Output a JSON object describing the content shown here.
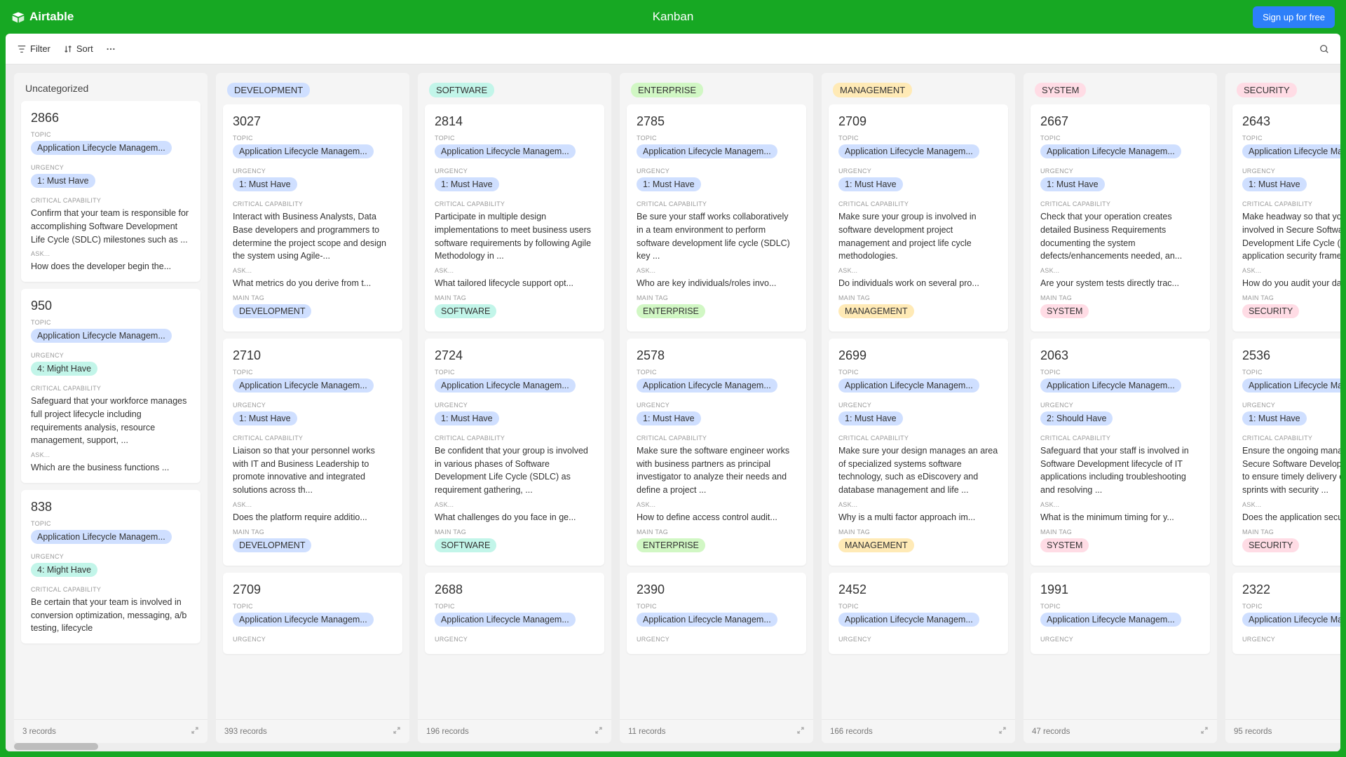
{
  "brand": "Airtable",
  "page_title": "Kanban",
  "signup_label": "Sign up for free",
  "toolbar": {
    "filter": "Filter",
    "sort": "Sort"
  },
  "colors": {
    "topic_pill": "#cfdfff",
    "urgency_must": "#cfdfff",
    "urgency_might": "#c2f5e9",
    "tag_development": "#cfdfff",
    "tag_software": "#c2f5e9",
    "tag_enterprise": "#d1f7c4",
    "tag_management": "#ffeab6",
    "tag_system": "#ffdce5",
    "tag_security": "#ffdce5"
  },
  "columns": [
    {
      "id": "uncategorized",
      "header_plain": "Uncategorized",
      "footer": "3 records",
      "cards": [
        {
          "id": "2866",
          "topic": "Application Lifecycle Managem...",
          "urgency": "1: Must Have",
          "urgency_color": "urgency_must",
          "capability": "Confirm that your team is responsible for accomplishing Software Development Life Cycle (SDLC) milestones such as ...",
          "ask": "How does the developer begin the..."
        },
        {
          "id": "950",
          "topic": "Application Lifecycle Managem...",
          "urgency": "4: Might Have",
          "urgency_color": "urgency_might",
          "capability": "Safeguard that your workforce manages full project lifecycle including requirements analysis, resource management, support, ...",
          "ask": "Which are the business functions ..."
        },
        {
          "id": "838",
          "topic": "Application Lifecycle Managem...",
          "urgency": "4: Might Have",
          "urgency_color": "urgency_might",
          "capability": "Be certain that your team is involved in conversion optimization, messaging, a/b testing, lifecycle"
        }
      ]
    },
    {
      "id": "development",
      "header_tag": "DEVELOPMENT",
      "header_color": "tag_development",
      "footer": "393 records",
      "cards": [
        {
          "id": "3027",
          "topic": "Application Lifecycle Managem...",
          "urgency": "1: Must Have",
          "urgency_color": "urgency_must",
          "capability": "Interact with Business Analysts, Data Base developers and programmers to determine the project scope and design the system using Agile-...",
          "ask": "What metrics do you derive from t...",
          "main_tag": "DEVELOPMENT",
          "main_tag_color": "tag_development"
        },
        {
          "id": "2710",
          "topic": "Application Lifecycle Managem...",
          "urgency": "1: Must Have",
          "urgency_color": "urgency_must",
          "capability": "Liaison so that your personnel works with IT and Business Leadership to promote innovative and integrated solutions across th...",
          "ask": "Does the platform require additio...",
          "main_tag": "DEVELOPMENT",
          "main_tag_color": "tag_development"
        },
        {
          "id": "2709",
          "topic": "Application Lifecycle Managem...",
          "urgency": "",
          "urgency_color": "urgency_must"
        }
      ]
    },
    {
      "id": "software",
      "header_tag": "SOFTWARE",
      "header_color": "tag_software",
      "footer": "196 records",
      "cards": [
        {
          "id": "2814",
          "topic": "Application Lifecycle Managem...",
          "urgency": "1: Must Have",
          "urgency_color": "urgency_must",
          "capability": "Participate in multiple design implementations to meet business users software requirements by following Agile Methodology in ...",
          "ask": "What tailored lifecycle support opt...",
          "main_tag": "SOFTWARE",
          "main_tag_color": "tag_software"
        },
        {
          "id": "2724",
          "topic": "Application Lifecycle Managem...",
          "urgency": "1: Must Have",
          "urgency_color": "urgency_must",
          "capability": "Be confident that your group is involved in various phases of Software Development Life Cycle (SDLC) as requirement gathering, ...",
          "ask": "What challenges do you face in ge...",
          "main_tag": "SOFTWARE",
          "main_tag_color": "tag_software"
        },
        {
          "id": "2688",
          "topic": "Application Lifecycle Managem...",
          "urgency": "",
          "urgency_color": "urgency_must"
        }
      ]
    },
    {
      "id": "enterprise",
      "header_tag": "ENTERPRISE",
      "header_color": "tag_enterprise",
      "footer": "11 records",
      "cards": [
        {
          "id": "2785",
          "topic": "Application Lifecycle Managem...",
          "urgency": "1: Must Have",
          "urgency_color": "urgency_must",
          "capability": "Be sure your staff works collaboratively in a team environment to perform software development life cycle (SDLC) key ...",
          "ask": "Who are key individuals/roles invo...",
          "main_tag": "ENTERPRISE",
          "main_tag_color": "tag_enterprise"
        },
        {
          "id": "2578",
          "topic": "Application Lifecycle Managem...",
          "urgency": "1: Must Have",
          "urgency_color": "urgency_must",
          "capability": "Make sure the software engineer works with business partners as principal investigator to analyze their needs and define a project ...",
          "ask": "How to define access control audit...",
          "main_tag": "ENTERPRISE",
          "main_tag_color": "tag_enterprise"
        },
        {
          "id": "2390",
          "topic": "Application Lifecycle Managem...",
          "urgency": "",
          "urgency_color": "urgency_must"
        }
      ]
    },
    {
      "id": "management",
      "header_tag": "MANAGEMENT",
      "header_color": "tag_management",
      "footer": "166 records",
      "cards": [
        {
          "id": "2709",
          "topic": "Application Lifecycle Managem...",
          "urgency": "1: Must Have",
          "urgency_color": "urgency_must",
          "capability": "Make sure your group is involved in software development project management and project life cycle methodologies.",
          "ask": "Do individuals work on several pro...",
          "main_tag": "MANAGEMENT",
          "main_tag_color": "tag_management"
        },
        {
          "id": "2699",
          "topic": "Application Lifecycle Managem...",
          "urgency": "1: Must Have",
          "urgency_color": "urgency_must",
          "capability": "Make sure your design manages an area of specialized systems software technology, such as eDiscovery and database management and life ...",
          "ask": "Why is a multi factor approach im...",
          "main_tag": "MANAGEMENT",
          "main_tag_color": "tag_management"
        },
        {
          "id": "2452",
          "topic": "Application Lifecycle Managem...",
          "urgency": "",
          "urgency_color": "urgency_must"
        }
      ]
    },
    {
      "id": "system",
      "header_tag": "SYSTEM",
      "header_color": "tag_system",
      "footer": "47 records",
      "cards": [
        {
          "id": "2667",
          "topic": "Application Lifecycle Managem...",
          "urgency": "1: Must Have",
          "urgency_color": "urgency_must",
          "capability": "Check that your operation creates detailed Business Requirements documenting the system defects/enhancements needed, an...",
          "ask": "Are your system tests directly trac...",
          "main_tag": "SYSTEM",
          "main_tag_color": "tag_system"
        },
        {
          "id": "2063",
          "topic": "Application Lifecycle Managem...",
          "urgency": "2: Should Have",
          "urgency_color": "urgency_must",
          "capability": "Safeguard that your staff is involved in Software Development lifecycle of IT applications including troubleshooting and resolving ...",
          "ask": "What is the minimum timing for y...",
          "main_tag": "SYSTEM",
          "main_tag_color": "tag_system"
        },
        {
          "id": "1991",
          "topic": "Application Lifecycle Managem...",
          "urgency": "",
          "urgency_color": "urgency_must"
        }
      ]
    },
    {
      "id": "security",
      "header_tag": "SECURITY",
      "header_color": "tag_security",
      "footer": "95 records",
      "cards": [
        {
          "id": "2643",
          "topic": "Application Lifecycle Managem...",
          "urgency": "1: Must Have",
          "urgency_color": "urgency_must",
          "capability": "Make headway so that your staff is involved in Secure Software Development Life Cycle (S SDLC), application security frameworks, ...",
          "ask": "How do you audit your data throu...",
          "main_tag": "SECURITY",
          "main_tag_color": "tag_security"
        },
        {
          "id": "2536",
          "topic": "Application Lifecycle Managem...",
          "urgency": "1: Must Have",
          "urgency_color": "urgency_must",
          "capability": "Ensure the ongoing management of a Secure Software Development Life Cycle to ensure timely delivery of application sprints with security ...",
          "ask": "Does the application security ensu...",
          "main_tag": "SECURITY",
          "main_tag_color": "tag_security"
        },
        {
          "id": "2322",
          "topic": "Application Lifecycle Managem...",
          "urgency": "",
          "urgency_color": "urgency_must"
        }
      ]
    }
  ],
  "labels": {
    "topic": "TOPIC",
    "urgency": "URGENCY",
    "capability": "CRITICAL CAPABILITY",
    "ask": "ASK...",
    "main_tag": "MAIN TAG"
  }
}
